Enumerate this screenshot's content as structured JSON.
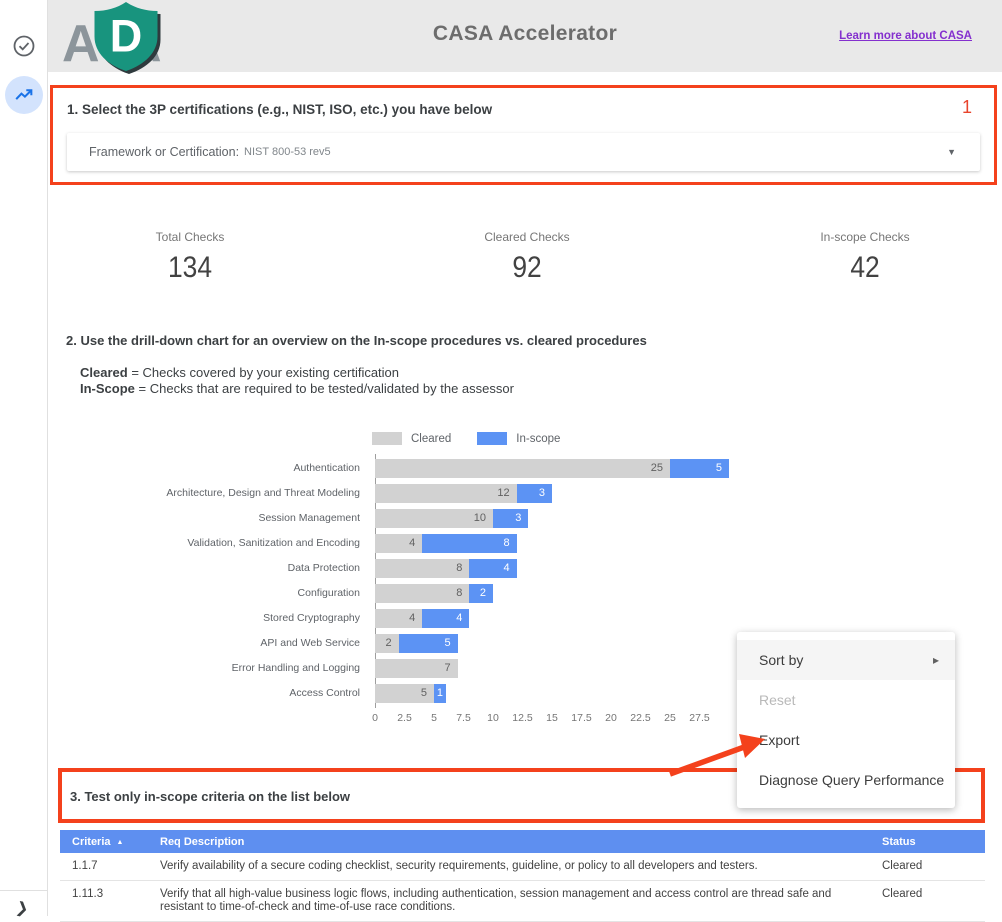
{
  "header": {
    "logo": {
      "left_letter": "A",
      "shield_letter": "D",
      "right_letter": "A"
    },
    "title": "CASA Accelerator",
    "link_label": "Learn more about CASA"
  },
  "sidebar": {
    "icons": [
      "check-circle-icon",
      "trending-up-icon",
      "chevron-right-icon"
    ],
    "chevron_glyph": "❯"
  },
  "section1": {
    "title": "1. Select the 3P certifications (e.g., NIST, ISO, etc.) you have below",
    "badge": "1",
    "filter_label": "Framework or Certification:",
    "filter_value": "NIST 800-53 rev5",
    "caret_glyph": "▼"
  },
  "scorecards": [
    {
      "label": "Total Checks",
      "value": "134"
    },
    {
      "label": "Cleared Checks",
      "value": "92"
    },
    {
      "label": "In-scope Checks",
      "value": "42"
    }
  ],
  "section2": {
    "title": "2. Use the drill-down chart for an overview on the In-scope procedures vs. cleared procedures",
    "notes": [
      {
        "term": "Cleared",
        "rest": " = Checks covered by your existing certification"
      },
      {
        "term": "In-Scope",
        "rest": " = Checks that are required to be tested/validated by the assessor"
      }
    ]
  },
  "chart_data": {
    "type": "bar",
    "orientation": "horizontal",
    "stacked": true,
    "legend_position": "top",
    "categories": [
      "Authentication",
      "Architecture, Design and Threat Modeling",
      "Session Management",
      "Validation, Sanitization and Encoding",
      "Data Protection",
      "Configuration",
      "Stored Cryptography",
      "API and Web Service",
      "Error Handling and Logging",
      "Access Control"
    ],
    "series": [
      {
        "name": "Cleared",
        "color": "#d2d2d2",
        "values": [
          25,
          12,
          10,
          4,
          8,
          8,
          4,
          2,
          7,
          5
        ]
      },
      {
        "name": "In-scope",
        "color": "#5c93f4",
        "values": [
          5,
          3,
          3,
          8,
          4,
          2,
          4,
          5,
          0,
          1
        ]
      }
    ],
    "x_ticks": [
      0,
      2.5,
      5,
      7.5,
      10,
      12.5,
      15,
      17.5,
      20,
      22.5,
      25,
      27.5
    ],
    "xlim": [
      0,
      30
    ]
  },
  "context_menu": {
    "items": [
      {
        "label": "Sort by",
        "submenu": true,
        "state": "hover"
      },
      {
        "label": "Reset",
        "state": "disabled"
      },
      {
        "label": "Export",
        "state": "normal"
      },
      {
        "label": "Diagnose Query Performance",
        "state": "normal"
      }
    ],
    "submenu_arrow_glyph": "▸"
  },
  "section3": {
    "title": "3. Test only in-scope criteria on the list below"
  },
  "table": {
    "columns": [
      "Criteria",
      "Req Description",
      "Status"
    ],
    "sort_icon": "▲",
    "rows": [
      [
        "1.1.7",
        "Verify availability of a secure coding checklist, security requirements, guideline, or policy to all developers and testers.",
        "Cleared"
      ],
      [
        "1.11.3",
        "Verify that all high-value business logic flows, including authentication, session management and access control are thread safe and resistant to time-of-check and time-of-use race conditions.",
        "Cleared"
      ]
    ]
  },
  "colors": {
    "accent_red": "#f4411c",
    "badge_red": "#e8442c",
    "bar_cleared": "#d2d2d2",
    "bar_inscope": "#5c93f4",
    "table_header_bg": "#5e8ff0",
    "link_purple": "#8430ce",
    "header_bg": "#e9e9e9",
    "logo_teal": "#18947e",
    "sidebar_icon_blue": "#1a73e8",
    "sidebar_icon_circle_bg": "#d3e3fd"
  }
}
